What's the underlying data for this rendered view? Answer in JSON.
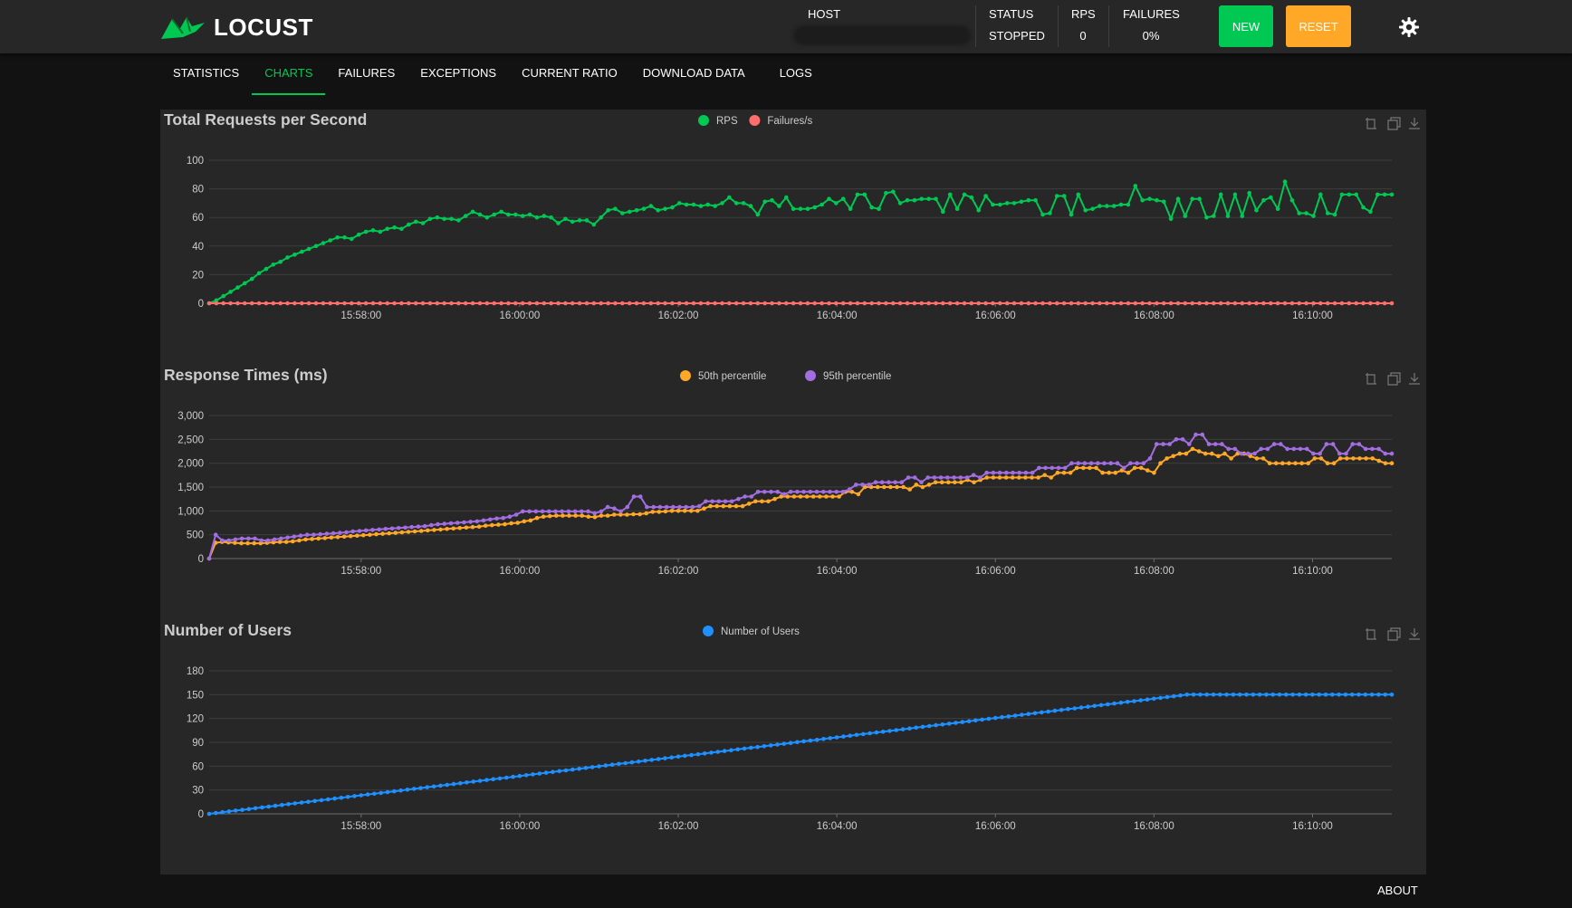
{
  "app": {
    "logo_text": "LOCUST",
    "brand_color": "#00c853",
    "header": {
      "host_label": "HOST",
      "status_label": "STATUS",
      "status_value": "STOPPED",
      "rps_label": "RPS",
      "rps_value": "0",
      "failures_label": "FAILURES",
      "failures_value": "0%",
      "new_button": "NEW",
      "reset_button": "RESET",
      "new_color": "#00c853",
      "reset_color": "#ffa726"
    },
    "tabs": [
      {
        "label": "STATISTICS",
        "active": false
      },
      {
        "label": "CHARTS",
        "active": true
      },
      {
        "label": "FAILURES",
        "active": false
      },
      {
        "label": "EXCEPTIONS",
        "active": false
      },
      {
        "label": "CURRENT RATIO",
        "active": false
      },
      {
        "label": "DOWNLOAD DATA",
        "active": false
      },
      {
        "label": "LOGS",
        "active": false
      }
    ],
    "footer": {
      "about_label": "ABOUT"
    },
    "chart_toolbar_icons": [
      "zoom-icon",
      "zoom-reset-icon",
      "download-icon"
    ]
  },
  "chart_data": [
    {
      "type": "line",
      "title": "Total Requests per Second",
      "x_ticks": [
        "15:58:00",
        "16:00:00",
        "16:02:00",
        "16:04:00",
        "16:06:00",
        "16:08:00",
        "16:10:00"
      ],
      "x_range": [
        "15:56:05",
        "16:11:00"
      ],
      "ylim": [
        0,
        100
      ],
      "y_ticks": [
        "0",
        "20",
        "40",
        "60",
        "80",
        "100"
      ],
      "series": [
        {
          "name": "RPS",
          "color": "#00c853",
          "values": [
            0,
            2,
            5,
            8,
            11,
            14,
            17,
            21,
            24,
            27,
            29,
            32,
            34,
            36,
            38,
            40,
            42,
            44,
            46,
            46,
            45,
            48,
            50,
            51,
            50,
            52,
            53,
            52,
            55,
            57,
            56,
            59,
            60,
            59,
            59,
            58,
            61,
            64,
            62,
            60,
            62,
            64,
            62,
            62,
            61,
            62,
            60,
            61,
            60,
            56,
            59,
            57,
            58,
            58,
            55,
            60,
            65,
            66,
            63,
            64,
            65,
            66,
            68,
            65,
            66,
            67,
            70,
            69,
            69,
            68,
            69,
            68,
            70,
            74,
            70,
            70,
            68,
            62,
            71,
            72,
            68,
            74,
            66,
            66,
            66,
            67,
            69,
            73,
            70,
            73,
            66,
            76,
            76,
            67,
            66,
            77,
            78,
            70,
            72,
            72,
            73,
            73,
            73,
            64,
            76,
            66,
            76,
            74,
            65,
            75,
            69,
            69,
            70,
            70,
            71,
            72,
            72,
            62,
            63,
            75,
            75,
            62,
            76,
            65,
            66,
            68,
            68,
            68,
            69,
            69,
            82,
            72,
            73,
            72,
            71,
            59,
            73,
            61,
            73,
            73,
            60,
            61,
            76,
            61,
            76,
            61,
            77,
            65,
            72,
            74,
            66,
            85,
            72,
            63,
            63,
            61,
            76,
            63,
            62,
            76,
            76,
            76,
            67,
            64,
            76,
            76,
            76
          ]
        },
        {
          "name": "Failures/s",
          "color": "#ff6d6d",
          "values": [
            0,
            0,
            0,
            0,
            0,
            0,
            0,
            0,
            0,
            0,
            0,
            0,
            0,
            0,
            0,
            0,
            0,
            0,
            0,
            0,
            0,
            0,
            0,
            0,
            0,
            0,
            0,
            0,
            0,
            0,
            0,
            0,
            0,
            0,
            0,
            0,
            0,
            0,
            0,
            0,
            0,
            0,
            0,
            0,
            0,
            0,
            0,
            0,
            0,
            0,
            0,
            0,
            0,
            0,
            0,
            0,
            0,
            0,
            0,
            0,
            0,
            0,
            0,
            0,
            0,
            0,
            0,
            0,
            0,
            0,
            0,
            0,
            0,
            0,
            0,
            0,
            0,
            0,
            0,
            0,
            0,
            0,
            0,
            0,
            0,
            0,
            0,
            0,
            0,
            0,
            0,
            0,
            0,
            0,
            0,
            0,
            0,
            0,
            0,
            0,
            0,
            0,
            0,
            0,
            0,
            0,
            0,
            0,
            0,
            0,
            0,
            0,
            0,
            0,
            0,
            0,
            0,
            0,
            0,
            0,
            0,
            0,
            0,
            0,
            0,
            0,
            0,
            0,
            0,
            0,
            0,
            0,
            0,
            0,
            0,
            0,
            0,
            0,
            0,
            0,
            0,
            0,
            0,
            0,
            0,
            0,
            0,
            0,
            0,
            0,
            0,
            0,
            0,
            0,
            0,
            0,
            0,
            0,
            0,
            0,
            0,
            0,
            0,
            0,
            0,
            0,
            0
          ]
        }
      ]
    },
    {
      "type": "line",
      "title": "Response Times (ms)",
      "x_ticks": [
        "15:58:00",
        "16:00:00",
        "16:02:00",
        "16:04:00",
        "16:06:00",
        "16:08:00",
        "16:10:00"
      ],
      "x_range": [
        "15:56:05",
        "16:11:00"
      ],
      "ylim": [
        0,
        3000
      ],
      "y_ticks": [
        "0",
        "500",
        "1,000",
        "1,500",
        "2,000",
        "2,500",
        "3,000"
      ],
      "series": [
        {
          "name": "50th percentile",
          "color": "#ffa726",
          "values": [
            0,
            330,
            350,
            340,
            330,
            320,
            320,
            320,
            320,
            330,
            340,
            350,
            350,
            360,
            380,
            400,
            410,
            420,
            430,
            440,
            450,
            460,
            470,
            480,
            490,
            500,
            510,
            520,
            530,
            540,
            550,
            560,
            570,
            580,
            590,
            600,
            610,
            620,
            630,
            640,
            650,
            660,
            670,
            690,
            700,
            710,
            720,
            740,
            750,
            780,
            800,
            850,
            880,
            890,
            900,
            900,
            900,
            900,
            900,
            880,
            870,
            900,
            900,
            920,
            920,
            920,
            930,
            930,
            950,
            980,
            980,
            990,
            1000,
            1000,
            1000,
            1000,
            1000,
            1050,
            1100,
            1100,
            1100,
            1100,
            1100,
            1100,
            1150,
            1200,
            1200,
            1200,
            1250,
            1300,
            1300,
            1300,
            1300,
            1300,
            1300,
            1300,
            1300,
            1300,
            1300,
            1400,
            1400,
            1350,
            1500,
            1500,
            1500,
            1500,
            1500,
            1500,
            1500,
            1450,
            1550,
            1500,
            1550,
            1600,
            1600,
            1600,
            1600,
            1600,
            1650,
            1600,
            1650,
            1700,
            1700,
            1700,
            1700,
            1700,
            1700,
            1700,
            1700,
            1700,
            1750,
            1700,
            1800,
            1800,
            1800,
            1900,
            1900,
            1900,
            1900,
            1800,
            1800,
            1800,
            1850,
            1800,
            1900,
            1900,
            1850,
            1800,
            2000,
            2100,
            2150,
            2200,
            2200,
            2300,
            2250,
            2200,
            2200,
            2150,
            2200,
            2100,
            2200,
            2200,
            2150,
            2100,
            2100,
            2000,
            2000,
            2000,
            2000,
            2000,
            2000,
            2000,
            2100,
            2100,
            2000,
            2000,
            2100,
            2100,
            2100,
            2100,
            2100,
            2100,
            2050,
            2000,
            2000
          ]
        },
        {
          "name": "95th percentile",
          "color": "#a36ee2",
          "values": [
            0,
            500,
            380,
            380,
            400,
            420,
            420,
            420,
            380,
            380,
            400,
            420,
            440,
            460,
            480,
            500,
            500,
            510,
            520,
            530,
            540,
            550,
            570,
            580,
            590,
            600,
            610,
            620,
            630,
            640,
            650,
            660,
            670,
            680,
            700,
            720,
            730,
            740,
            750,
            760,
            770,
            780,
            800,
            820,
            840,
            850,
            880,
            920,
            990,
            990,
            990,
            990,
            990,
            990,
            990,
            990,
            990,
            990,
            990,
            950,
            990,
            1080,
            1050,
            990,
            1080,
            1300,
            1300,
            1080,
            1080,
            1080,
            1080,
            1080,
            1080,
            1080,
            1080,
            1100,
            1200,
            1200,
            1200,
            1200,
            1200,
            1250,
            1300,
            1300,
            1400,
            1400,
            1400,
            1400,
            1350,
            1400,
            1400,
            1400,
            1400,
            1400,
            1400,
            1400,
            1400,
            1400,
            1450,
            1550,
            1550,
            1550,
            1600,
            1600,
            1600,
            1600,
            1600,
            1700,
            1700,
            1600,
            1700,
            1700,
            1700,
            1700,
            1700,
            1700,
            1700,
            1750,
            1700,
            1800,
            1800,
            1800,
            1800,
            1800,
            1800,
            1800,
            1800,
            1900,
            1900,
            1900,
            1900,
            1900,
            2000,
            2000,
            2000,
            2000,
            2000,
            2000,
            2000,
            2000,
            1900,
            2000,
            2000,
            2000,
            2100,
            2400,
            2400,
            2400,
            2500,
            2500,
            2400,
            2600,
            2600,
            2400,
            2400,
            2400,
            2300,
            2300,
            2200,
            2200,
            2200,
            2300,
            2300,
            2400,
            2400,
            2300,
            2300,
            2300,
            2300,
            2200,
            2200,
            2400,
            2400,
            2200,
            2200,
            2400,
            2400,
            2300,
            2300,
            2300,
            2200,
            2200
          ]
        }
      ]
    },
    {
      "type": "line",
      "title": "Number of Users",
      "x_ticks": [
        "15:58:00",
        "16:00:00",
        "16:02:00",
        "16:04:00",
        "16:06:00",
        "16:08:00",
        "16:10:00"
      ],
      "x_range": [
        "15:56:05",
        "16:11:00"
      ],
      "ylim": [
        0,
        180
      ],
      "y_ticks": [
        "0",
        "30",
        "60",
        "90",
        "120",
        "150",
        "180"
      ],
      "series": [
        {
          "name": "Number of Users",
          "color": "#1e90ff",
          "ramp_to": 150,
          "ramp_end_time": "16:08:25",
          "values_note": ""
        }
      ]
    }
  ]
}
